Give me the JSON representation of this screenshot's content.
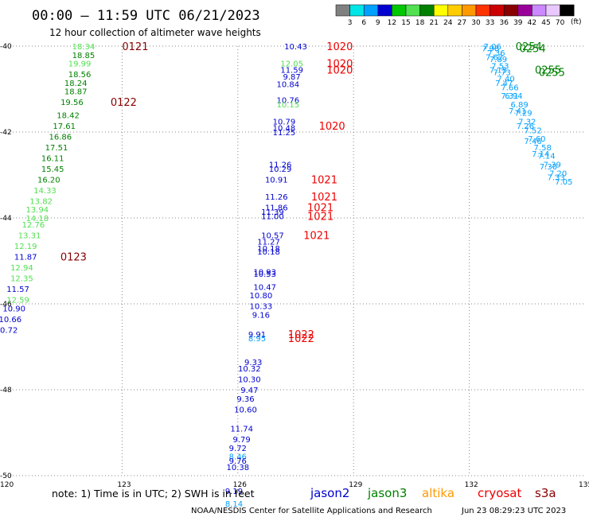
{
  "header": {
    "title": "00:00 – 11:59 UTC 06/21/2023",
    "subtitle": "12 hour collection of altimeter wave heights"
  },
  "colorbar": {
    "ticks": [
      "3",
      "6",
      "9",
      "12",
      "15",
      "18",
      "21",
      "24",
      "27",
      "30",
      "33",
      "36",
      "39",
      "42",
      "45",
      "70"
    ],
    "unit": "(ft)",
    "colors": [
      "#808080",
      "#00e5e5",
      "#00a0ff",
      "#0000d0",
      "#00c800",
      "#50e050",
      "#008000",
      "#ffff00",
      "#ffcc00",
      "#ff9900",
      "#ff3300",
      "#cc0000",
      "#880000",
      "#990099",
      "#cc88ff",
      "#e8c8ff",
      "#000000"
    ]
  },
  "footer": {
    "note": "note:  1) Time is in UTC;  2) SWH is in feet",
    "credit": "NOAA/NESDIS Center for Satellite Applications and Research",
    "timestamp": "Jun 23 08:29:23 UTC 2023",
    "satellites": [
      {
        "name": "jason2",
        "color": "#0000d0"
      },
      {
        "name": "jason3",
        "color": "#008000"
      },
      {
        "name": "altika",
        "color": "#ff9900"
      },
      {
        "name": "cryosat",
        "color": "#ee0000"
      },
      {
        "name": "s3a",
        "color": "#880000"
      }
    ]
  },
  "chart_data": {
    "type": "scatter",
    "title": "00:00 – 11:59 UTC 06/21/2023",
    "subtitle": "12 hour collection of altimeter wave heights",
    "xlim": [
      120,
      135
    ],
    "ylim": [
      -50,
      -40
    ],
    "x_ticks": [
      120,
      123,
      126,
      129,
      132,
      135
    ],
    "y_ticks": [
      -40,
      -42,
      -44,
      -46,
      -48,
      -50
    ],
    "y_tick_labels": [
      "-40",
      "-42",
      "-44",
      "-46",
      "-48",
      "-50"
    ],
    "grid": true,
    "points": [
      {
        "x": 122.0,
        "y": -40.0,
        "label": "18.34",
        "color": "#50e050"
      },
      {
        "x": 122.0,
        "y": -40.2,
        "label": "18.85",
        "color": "#008000"
      },
      {
        "x": 121.9,
        "y": -40.4,
        "label": "19.99",
        "color": "#50e050"
      },
      {
        "x": 121.9,
        "y": -40.65,
        "label": "18.56",
        "color": "#008000"
      },
      {
        "x": 121.8,
        "y": -40.85,
        "label": "18.24",
        "color": "#008000"
      },
      {
        "x": 121.8,
        "y": -41.05,
        "label": "18.87",
        "color": "#008000"
      },
      {
        "x": 121.7,
        "y": -41.3,
        "label": "19.56",
        "color": "#008000"
      },
      {
        "x": 121.6,
        "y": -41.6,
        "label": "18.42",
        "color": "#008000"
      },
      {
        "x": 121.5,
        "y": -41.85,
        "label": "17.61",
        "color": "#008000"
      },
      {
        "x": 121.4,
        "y": -42.1,
        "label": "16.86",
        "color": "#008000"
      },
      {
        "x": 121.3,
        "y": -42.35,
        "label": "17.51",
        "color": "#008000"
      },
      {
        "x": 121.2,
        "y": -42.6,
        "label": "16.11",
        "color": "#008000"
      },
      {
        "x": 121.2,
        "y": -42.85,
        "label": "15.45",
        "color": "#008000"
      },
      {
        "x": 121.1,
        "y": -43.1,
        "label": "16.20",
        "color": "#008000"
      },
      {
        "x": 121.0,
        "y": -43.35,
        "label": "14.33",
        "color": "#50e050"
      },
      {
        "x": 120.9,
        "y": -43.6,
        "label": "13.82",
        "color": "#50e050"
      },
      {
        "x": 120.8,
        "y": -43.8,
        "label": "13.94",
        "color": "#50e050"
      },
      {
        "x": 120.8,
        "y": -44.0,
        "label": "14.18",
        "color": "#50e050"
      },
      {
        "x": 120.7,
        "y": -44.15,
        "label": "12.76",
        "color": "#50e050"
      },
      {
        "x": 120.6,
        "y": -44.4,
        "label": "13.31",
        "color": "#50e050"
      },
      {
        "x": 120.5,
        "y": -44.65,
        "label": "12.19",
        "color": "#50e050"
      },
      {
        "x": 120.5,
        "y": -44.9,
        "label": "11.87",
        "color": "#0000d0"
      },
      {
        "x": 120.4,
        "y": -45.15,
        "label": "12.94",
        "color": "#50e050"
      },
      {
        "x": 120.4,
        "y": -45.4,
        "label": "12.35",
        "color": "#50e050"
      },
      {
        "x": 120.3,
        "y": -45.65,
        "label": "11.57",
        "color": "#0000d0"
      },
      {
        "x": 120.3,
        "y": -45.9,
        "label": "12.59",
        "color": "#50e050"
      },
      {
        "x": 120.2,
        "y": -46.1,
        "label": "10.90",
        "color": "#0000d0"
      },
      {
        "x": 120.1,
        "y": -46.35,
        "label": "10.66",
        "color": "#0000d0"
      },
      {
        "x": 120.0,
        "y": -46.6,
        "label": "10.72",
        "color": "#0000d0"
      },
      {
        "x": 127.5,
        "y": -40.0,
        "label": "10.43",
        "color": "#0000d0"
      },
      {
        "x": 127.4,
        "y": -40.4,
        "label": "12.05",
        "color": "#50e050"
      },
      {
        "x": 127.4,
        "y": -40.55,
        "label": "11.59",
        "color": "#0000d0"
      },
      {
        "x": 127.4,
        "y": -40.7,
        "label": "9.87",
        "color": "#0000d0"
      },
      {
        "x": 127.3,
        "y": -40.88,
        "label": "10.84",
        "color": "#0000d0"
      },
      {
        "x": 127.3,
        "y": -41.25,
        "label": "10.76",
        "color": "#0000d0"
      },
      {
        "x": 127.3,
        "y": -41.35,
        "label": "10.15",
        "color": "#50e050"
      },
      {
        "x": 127.2,
        "y": -41.75,
        "label": "10.79",
        "color": "#0000d0"
      },
      {
        "x": 127.2,
        "y": -41.9,
        "label": "10.48",
        "color": "#0000d0"
      },
      {
        "x": 127.2,
        "y": -42.0,
        "label": "11.25",
        "color": "#0000d0"
      },
      {
        "x": 127.1,
        "y": -42.75,
        "label": "11.26",
        "color": "#0000d0"
      },
      {
        "x": 127.1,
        "y": -42.85,
        "label": "10.29",
        "color": "#0000d0"
      },
      {
        "x": 127.0,
        "y": -43.1,
        "label": "10.91",
        "color": "#0000d0"
      },
      {
        "x": 127.0,
        "y": -43.5,
        "label": "11.26",
        "color": "#0000d0"
      },
      {
        "x": 127.0,
        "y": -43.75,
        "label": "11.86",
        "color": "#0000d0"
      },
      {
        "x": 126.9,
        "y": -43.85,
        "label": "11.39",
        "color": "#0000d0"
      },
      {
        "x": 126.9,
        "y": -43.95,
        "label": "11.00",
        "color": "#0000d0"
      },
      {
        "x": 126.9,
        "y": -44.4,
        "label": "10.57",
        "color": "#0000d0"
      },
      {
        "x": 126.8,
        "y": -44.55,
        "label": "11.27",
        "color": "#0000d0"
      },
      {
        "x": 126.8,
        "y": -44.7,
        "label": "10.18",
        "color": "#0000d0"
      },
      {
        "x": 126.8,
        "y": -44.78,
        "label": "10.18",
        "color": "#0000d0"
      },
      {
        "x": 126.7,
        "y": -45.25,
        "label": "10.93",
        "color": "#0000d0"
      },
      {
        "x": 126.7,
        "y": -45.3,
        "label": "10.53",
        "color": "#0000d0"
      },
      {
        "x": 126.7,
        "y": -45.6,
        "label": "10.47",
        "color": "#0000d0"
      },
      {
        "x": 126.6,
        "y": -45.8,
        "label": "10.80",
        "color": "#0000d0"
      },
      {
        "x": 126.6,
        "y": -46.05,
        "label": "10.33",
        "color": "#0000d0"
      },
      {
        "x": 126.6,
        "y": -46.25,
        "label": "9.16",
        "color": "#0000d0"
      },
      {
        "x": 126.5,
        "y": -46.7,
        "label": "9.91",
        "color": "#0000d0"
      },
      {
        "x": 126.5,
        "y": -46.8,
        "label": "8.95",
        "color": "#00a0ff"
      },
      {
        "x": 126.4,
        "y": -47.35,
        "label": "9.33",
        "color": "#0000d0"
      },
      {
        "x": 126.3,
        "y": -47.5,
        "label": "10.32",
        "color": "#0000d0"
      },
      {
        "x": 126.3,
        "y": -47.75,
        "label": "10.30",
        "color": "#0000d0"
      },
      {
        "x": 126.3,
        "y": -48.0,
        "label": "9.47",
        "color": "#0000d0"
      },
      {
        "x": 126.2,
        "y": -48.2,
        "label": "9.36",
        "color": "#0000d0"
      },
      {
        "x": 126.2,
        "y": -48.45,
        "label": "10.60",
        "color": "#0000d0"
      },
      {
        "x": 126.1,
        "y": -48.9,
        "label": "11.74",
        "color": "#0000d0"
      },
      {
        "x": 126.1,
        "y": -49.15,
        "label": "9.79",
        "color": "#0000d0"
      },
      {
        "x": 126.0,
        "y": -49.35,
        "label": "9.72",
        "color": "#0000d0"
      },
      {
        "x": 126.0,
        "y": -49.55,
        "label": "8.46",
        "color": "#00a0ff"
      },
      {
        "x": 126.0,
        "y": -49.65,
        "label": "9.76",
        "color": "#0000d0"
      },
      {
        "x": 126.0,
        "y": -49.8,
        "label": "10.38",
        "color": "#0000d0"
      },
      {
        "x": 125.9,
        "y": -50.35,
        "label": "9.19",
        "color": "#0000d0"
      },
      {
        "x": 125.9,
        "y": -50.65,
        "label": "8.14",
        "color": "#00a0ff"
      },
      {
        "x": 132.6,
        "y": -40.0,
        "label": "7.06",
        "color": "#00a0ff"
      },
      {
        "x": 132.7,
        "y": -40.15,
        "label": "7.36",
        "color": "#00a0ff"
      },
      {
        "x": 132.75,
        "y": -40.3,
        "label": "7.89",
        "color": "#00a0ff"
      },
      {
        "x": 132.8,
        "y": -40.45,
        "label": "7.53",
        "color": "#00a0ff"
      },
      {
        "x": 132.85,
        "y": -40.6,
        "label": "7.73",
        "color": "#00a0ff"
      },
      {
        "x": 132.95,
        "y": -40.75,
        "label": "7.40",
        "color": "#00a0ff"
      },
      {
        "x": 133.05,
        "y": -40.95,
        "label": "7.66",
        "color": "#00a0ff"
      },
      {
        "x": 133.15,
        "y": -41.15,
        "label": "6.94",
        "color": "#00a0ff"
      },
      {
        "x": 133.3,
        "y": -41.35,
        "label": "6.89",
        "color": "#00a0ff"
      },
      {
        "x": 133.4,
        "y": -41.55,
        "label": "7.29",
        "color": "#00a0ff"
      },
      {
        "x": 133.5,
        "y": -41.75,
        "label": "7.32",
        "color": "#00a0ff"
      },
      {
        "x": 133.65,
        "y": -41.95,
        "label": "7.52",
        "color": "#00a0ff"
      },
      {
        "x": 133.75,
        "y": -42.15,
        "label": "7.60",
        "color": "#00a0ff"
      },
      {
        "x": 133.9,
        "y": -42.35,
        "label": "7.58",
        "color": "#00a0ff"
      },
      {
        "x": 134.0,
        "y": -42.55,
        "label": "7.14",
        "color": "#00a0ff"
      },
      {
        "x": 134.15,
        "y": -42.75,
        "label": "7.39",
        "color": "#00a0ff"
      },
      {
        "x": 134.3,
        "y": -42.95,
        "label": "7.20",
        "color": "#00a0ff"
      },
      {
        "x": 134.45,
        "y": -43.15,
        "label": "7.05",
        "color": "#00a0ff"
      },
      {
        "x": 132.55,
        "y": -40.05,
        "label": "7.98",
        "color": "#00a0ff"
      },
      {
        "x": 132.65,
        "y": -40.25,
        "label": "7.62",
        "color": "#00a0ff"
      },
      {
        "x": 132.75,
        "y": -40.55,
        "label": "7.15",
        "color": "#00a0ff"
      },
      {
        "x": 132.9,
        "y": -40.85,
        "label": "7.47",
        "color": "#00a0ff"
      },
      {
        "x": 133.05,
        "y": -41.15,
        "label": "7.31",
        "color": "#00a0ff"
      },
      {
        "x": 133.25,
        "y": -41.5,
        "label": "7.41",
        "color": "#00a0ff"
      },
      {
        "x": 133.45,
        "y": -41.85,
        "label": "7.26",
        "color": "#00a0ff"
      },
      {
        "x": 133.65,
        "y": -42.2,
        "label": "7.46",
        "color": "#00a0ff"
      },
      {
        "x": 133.85,
        "y": -42.5,
        "label": "7.14",
        "color": "#00a0ff"
      },
      {
        "x": 134.05,
        "y": -42.8,
        "label": "7.30",
        "color": "#00a0ff"
      },
      {
        "x": 134.25,
        "y": -43.05,
        "label": "7.33",
        "color": "#00a0ff"
      }
    ],
    "time_labels": [
      {
        "x": 123.0,
        "y": -40.0,
        "label": "0121",
        "color": "#880000"
      },
      {
        "x": 122.7,
        "y": -41.3,
        "label": "0122",
        "color": "#880000"
      },
      {
        "x": 121.4,
        "y": -44.9,
        "label": "0123",
        "color": "#880000"
      },
      {
        "x": 128.3,
        "y": -40.0,
        "label": "1020",
        "color": "#ee0000"
      },
      {
        "x": 128.3,
        "y": -40.4,
        "label": "1020",
        "color": "#ee0000"
      },
      {
        "x": 128.3,
        "y": -40.55,
        "label": "1020",
        "color": "#ee0000"
      },
      {
        "x": 128.1,
        "y": -41.85,
        "label": "1020",
        "color": "#ee0000"
      },
      {
        "x": 127.9,
        "y": -43.1,
        "label": "1021",
        "color": "#ee0000"
      },
      {
        "x": 127.9,
        "y": -43.5,
        "label": "1021",
        "color": "#ee0000"
      },
      {
        "x": 127.8,
        "y": -43.75,
        "label": "1021",
        "color": "#ee0000"
      },
      {
        "x": 127.8,
        "y": -43.95,
        "label": "1021",
        "color": "#ee0000"
      },
      {
        "x": 127.7,
        "y": -44.4,
        "label": "1021",
        "color": "#ee0000"
      },
      {
        "x": 127.3,
        "y": -46.7,
        "label": "1022",
        "color": "#ee0000"
      },
      {
        "x": 127.3,
        "y": -46.8,
        "label": "1022",
        "color": "#ee0000"
      },
      {
        "x": 133.2,
        "y": -40.0,
        "label": "0254",
        "color": "#008000"
      },
      {
        "x": 133.3,
        "y": -40.05,
        "label": "0254",
        "color": "#008000"
      },
      {
        "x": 133.7,
        "y": -40.55,
        "label": "0255",
        "color": "#008000"
      },
      {
        "x": 133.8,
        "y": -40.6,
        "label": "0255",
        "color": "#008000"
      }
    ]
  }
}
